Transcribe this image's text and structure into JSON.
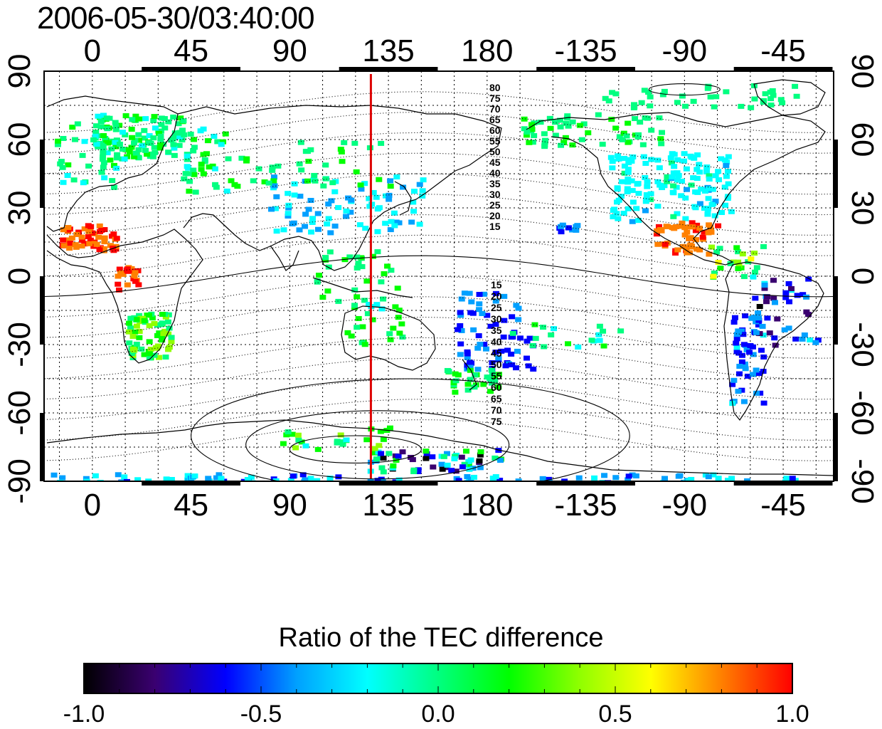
{
  "title": "2006-05-30/03:40:00",
  "map": {
    "projection": "cylindrical",
    "lon_range": [
      -22,
      338
    ],
    "lat_range": [
      -90,
      90
    ],
    "lon_ticks_top": [
      "0",
      "45",
      "90",
      "135",
      "180",
      "-135",
      "-90",
      "-45"
    ],
    "lon_ticks_bottom": [
      "0",
      "45",
      "90",
      "135",
      "180",
      "-135",
      "-90",
      "-45"
    ],
    "lat_ticks_left": [
      "90",
      "60",
      "30",
      "0",
      "-30",
      "-60",
      "-90"
    ],
    "lat_ticks_right": [
      "90",
      "60",
      "30",
      "0",
      "-30",
      "-60",
      "-90"
    ],
    "terminator_longitude": 127,
    "terminator_color": "#dd0000",
    "dip_contours_north": [
      "80",
      "75",
      "70",
      "65",
      "60",
      "55",
      "50",
      "45",
      "40",
      "35",
      "30",
      "25",
      "20",
      "15"
    ],
    "dip_contours_south": [
      "15",
      "20",
      "25",
      "30",
      "35",
      "40",
      "45",
      "50",
      "55",
      "60",
      "65",
      "70",
      "75"
    ],
    "grid": true
  },
  "colorbar": {
    "title": "Ratio of the TEC difference",
    "min": -1.0,
    "max": 1.0,
    "tick_labels": [
      "-1.0",
      "-0.5",
      "0.0",
      "0.5",
      "1.0"
    ],
    "colors": [
      "#000000",
      "#3a0070",
      "#0000ff",
      "#00a0ff",
      "#00ffff",
      "#00ff80",
      "#00ff00",
      "#90ff00",
      "#ffff00",
      "#ff8000",
      "#ff0000"
    ]
  }
}
